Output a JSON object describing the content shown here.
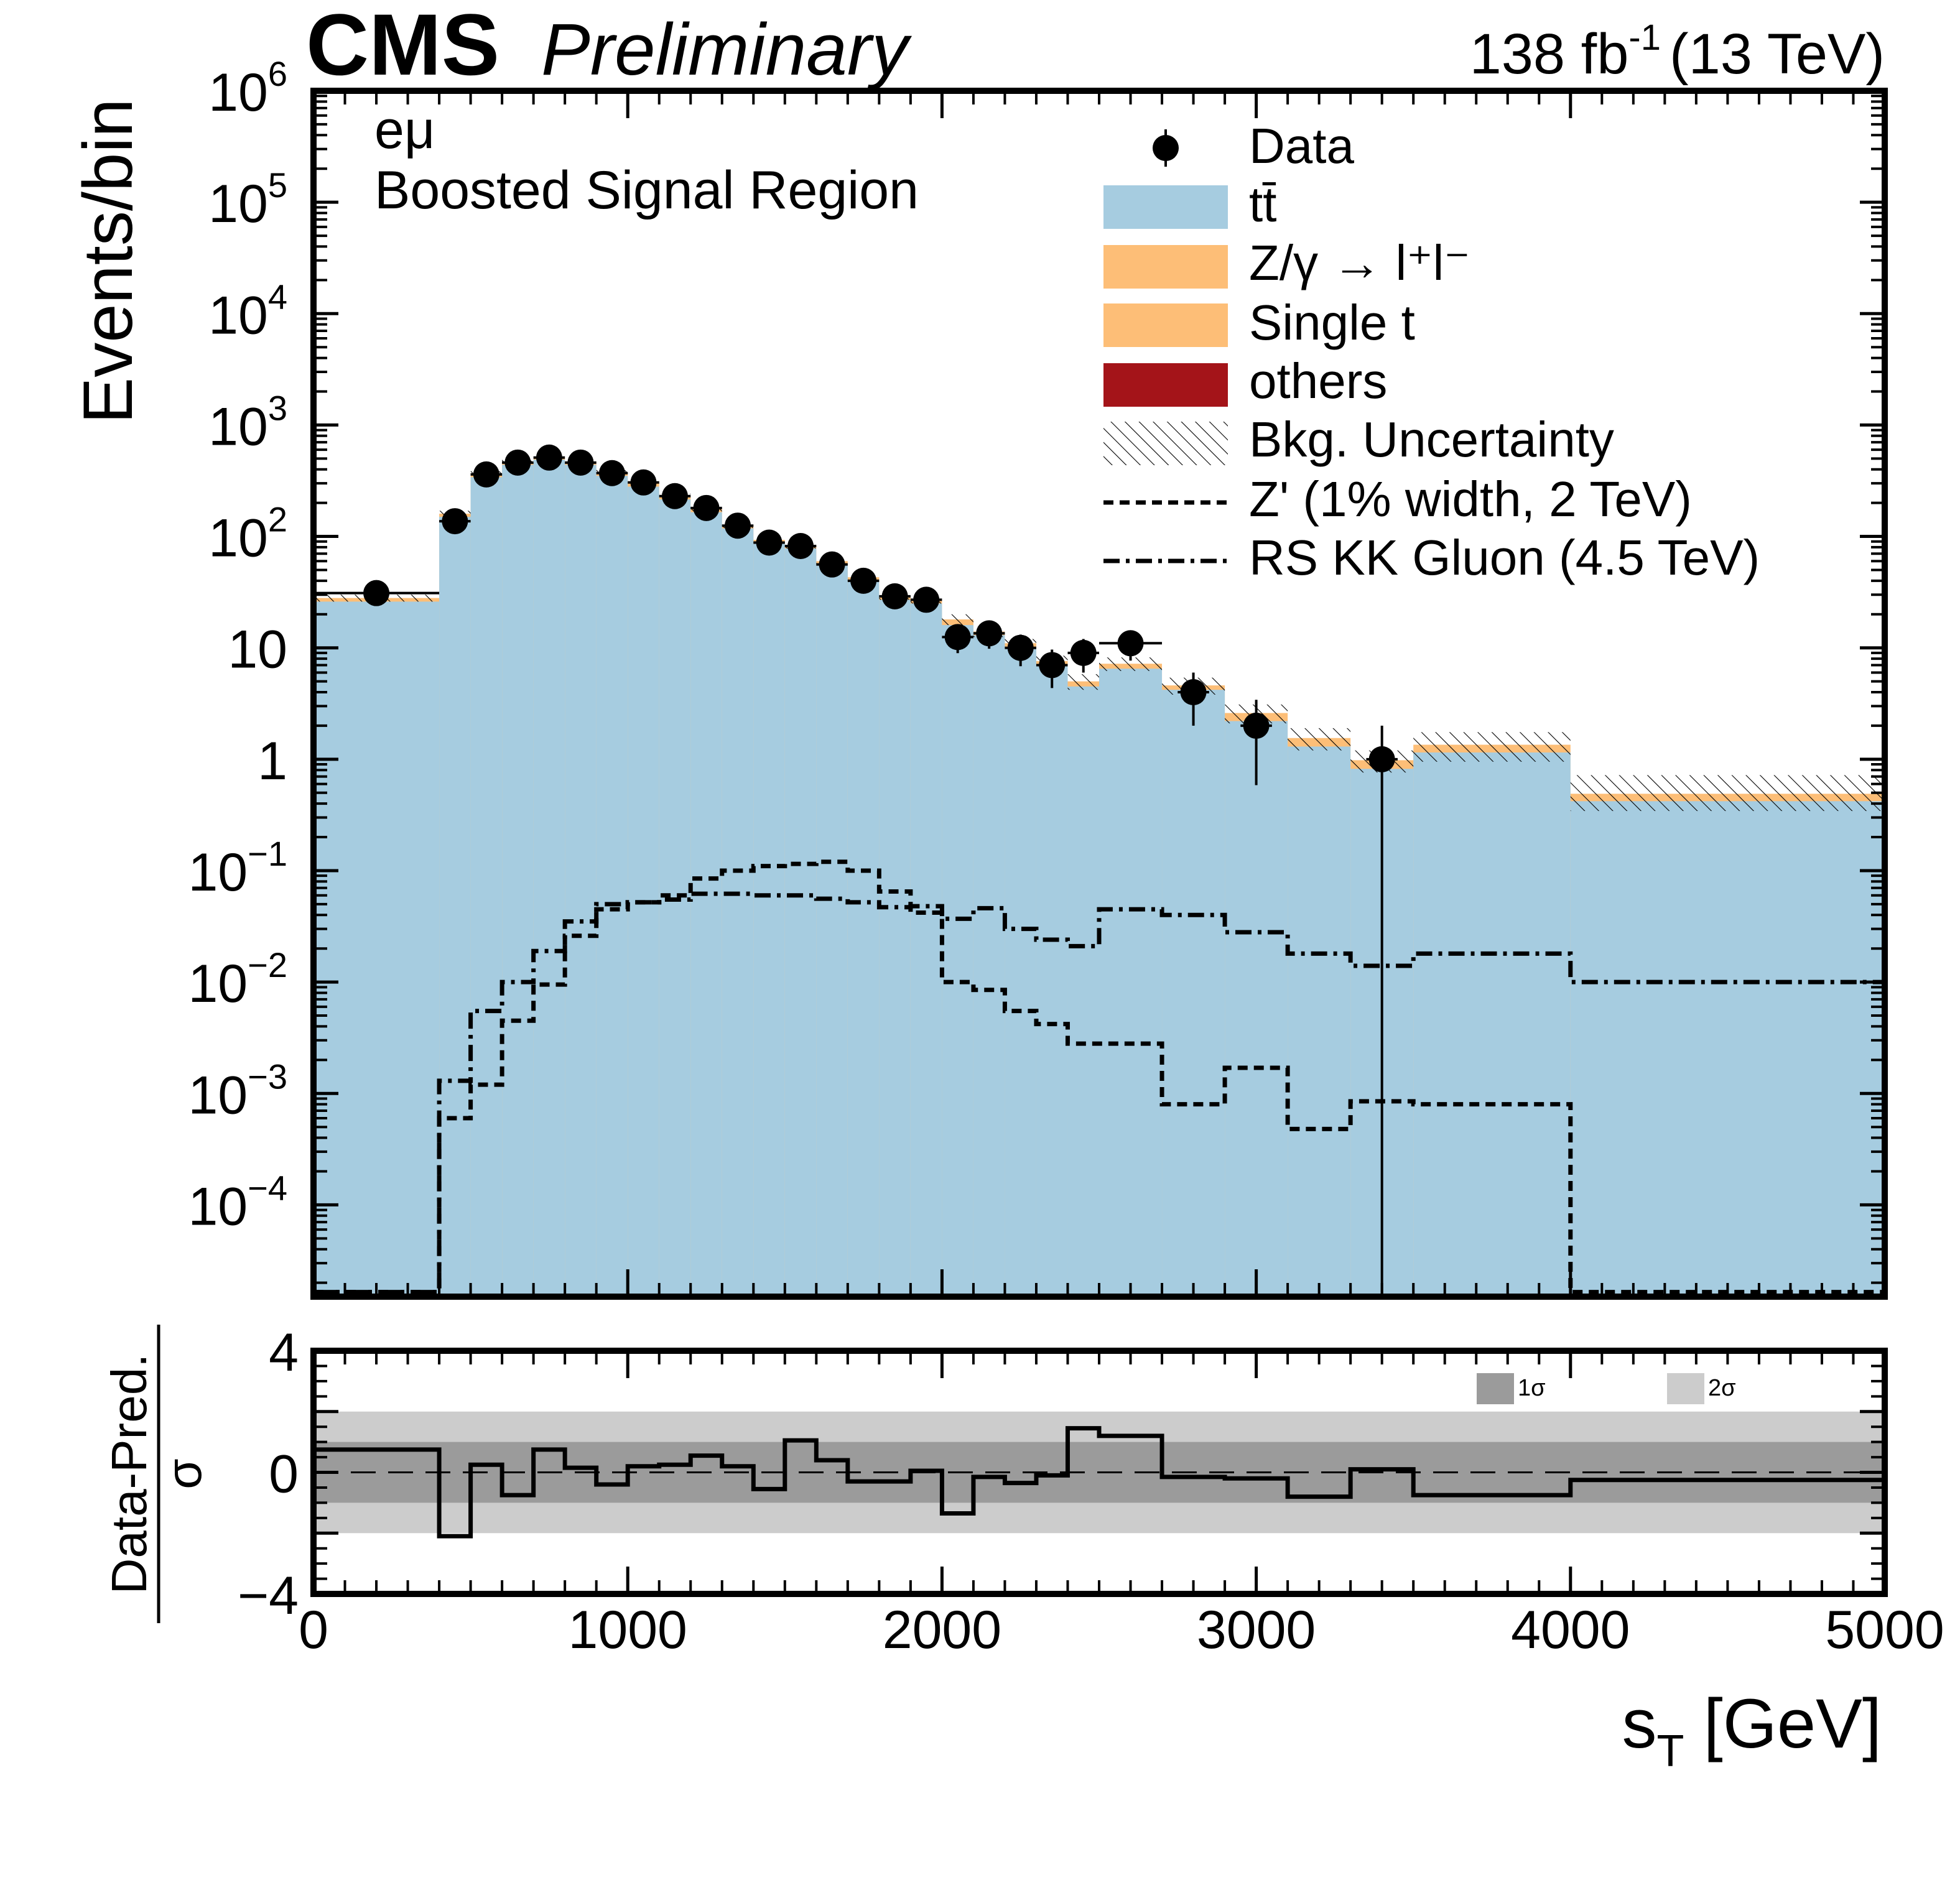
{
  "header": {
    "experiment": "CMS",
    "status": "Preliminary",
    "lumi_value": "138 fb",
    "lumi_exp": "-1",
    "energy": "(13 TeV)"
  },
  "labels": {
    "channel": "eμ",
    "region": "Boosted Signal Region"
  },
  "legend": [
    {
      "key": "data",
      "label": "Data"
    },
    {
      "key": "ttbar",
      "label": "tt̄"
    },
    {
      "key": "dy",
      "label": "Z/γ → l⁺l⁻"
    },
    {
      "key": "single_t",
      "label": "Single t"
    },
    {
      "key": "others",
      "label": "others"
    },
    {
      "key": "unc",
      "label": "Bkg. Uncertainty"
    },
    {
      "key": "zprime",
      "label": "Z' (1% width, 2 TeV)"
    },
    {
      "key": "rskk",
      "label": "RS KK Gluon (4.5 TeV)"
    }
  ],
  "ratio_legend": {
    "one_sigma": "1σ",
    "two_sigma": "2σ"
  },
  "colors": {
    "ttbar": "#a6cce0",
    "dy": "#fdbe77",
    "single_t": "#fdbe77",
    "others": "#a41419",
    "band1": "#9b9b9b",
    "band2": "#cccccc"
  },
  "chart_data": [
    {
      "type": "bar",
      "panel": "main",
      "title": "CMS Preliminary",
      "xlabel": "s_T [GeV]",
      "ylabel": "Events/bin",
      "yscale": "log",
      "ylim": [
        1.5e-05,
        1000000
      ],
      "xlim": [
        0,
        5000
      ],
      "y_ticks": [
        {
          "value": 1000000,
          "base": "10",
          "exp": "6"
        },
        {
          "value": 100000,
          "base": "10",
          "exp": "5"
        },
        {
          "value": 10000,
          "base": "10",
          "exp": "4"
        },
        {
          "value": 1000,
          "base": "10",
          "exp": "3"
        },
        {
          "value": 100,
          "base": "10",
          "exp": "2"
        },
        {
          "value": 10,
          "base": "10",
          "exp": ""
        },
        {
          "value": 1,
          "base": "1",
          "exp": ""
        },
        {
          "value": 0.1,
          "base": "10",
          "exp": "−1"
        },
        {
          "value": 0.01,
          "base": "10",
          "exp": "−2"
        },
        {
          "value": 0.001,
          "base": "10",
          "exp": "−3"
        },
        {
          "value": 0.0001,
          "base": "10",
          "exp": "−4"
        }
      ],
      "bin_edges": [
        0,
        400,
        500,
        600,
        700,
        800,
        900,
        1000,
        1100,
        1200,
        1300,
        1400,
        1500,
        1600,
        1700,
        1800,
        1900,
        2000,
        2100,
        2200,
        2300,
        2400,
        2500,
        2700,
        2900,
        3100,
        3300,
        3500,
        4000,
        5000
      ],
      "series": [
        {
          "name": "tt̄",
          "values": [
            26,
            150,
            340,
            440,
            490,
            440,
            350,
            280,
            215,
            165,
            118,
            87,
            78,
            56,
            40,
            27,
            25,
            16,
            13,
            10,
            7,
            4.5,
            6.5,
            4.2,
            2.2,
            1.3,
            0.82,
            1.15,
            0.42
          ]
        },
        {
          "name": "Z/γ → l⁺l⁻ + Single t",
          "values": [
            28,
            160,
            365,
            470,
            520,
            470,
            375,
            300,
            230,
            176,
            126,
            93,
            83,
            60,
            43,
            29,
            27,
            18,
            14,
            11,
            7.6,
            5,
            7.2,
            4.6,
            2.6,
            1.55,
            0.98,
            1.35,
            0.49
          ]
        },
        {
          "name": "Bkg. Uncertainty (upper)",
          "values": [
            30,
            170,
            385,
            495,
            545,
            495,
            395,
            315,
            242,
            185,
            133,
            98,
            88,
            64,
            46,
            31,
            29,
            20,
            15.5,
            12,
            8.5,
            5.8,
            8.2,
            5.4,
            3.1,
            1.9,
            1.2,
            1.75,
            0.72
          ]
        }
      ],
      "data_points": [
        {
          "x": 200,
          "y": 31,
          "xerr": 200
        },
        {
          "x": 450,
          "y": 137
        },
        {
          "x": 550,
          "y": 360
        },
        {
          "x": 650,
          "y": 460
        },
        {
          "x": 750,
          "y": 510
        },
        {
          "x": 850,
          "y": 460
        },
        {
          "x": 950,
          "y": 370
        },
        {
          "x": 1050,
          "y": 305
        },
        {
          "x": 1150,
          "y": 230
        },
        {
          "x": 1250,
          "y": 180
        },
        {
          "x": 1350,
          "y": 125
        },
        {
          "x": 1450,
          "y": 88
        },
        {
          "x": 1550,
          "y": 82
        },
        {
          "x": 1650,
          "y": 56
        },
        {
          "x": 1750,
          "y": 40
        },
        {
          "x": 1850,
          "y": 29
        },
        {
          "x": 1950,
          "y": 27
        },
        {
          "x": 2050,
          "y": 12.5
        },
        {
          "x": 2150,
          "y": 13.5
        },
        {
          "x": 2250,
          "y": 10
        },
        {
          "x": 2350,
          "y": 7
        },
        {
          "x": 2450,
          "y": 9
        },
        {
          "x": 2600,
          "y": 11,
          "xerr": 100
        },
        {
          "x": 2800,
          "y": 4
        },
        {
          "x": 3000,
          "y": 2
        },
        {
          "x": 3400,
          "y": 1
        }
      ],
      "signals": [
        {
          "name": "Z' (1% width, 2 TeV)",
          "values": [
            1.65e-05,
            0.0006,
            0.0012,
            0.0045,
            0.0095,
            0.026,
            0.045,
            0.052,
            0.06,
            0.085,
            0.1,
            0.11,
            0.115,
            0.12,
            0.1,
            0.065,
            0.042,
            0.01,
            0.0085,
            0.0055,
            0.0042,
            0.0028,
            0.0028,
            0.0008,
            0.0017,
            0.00048,
            0.00085,
            0.0008,
            1.65e-05
          ]
        },
        {
          "name": "RS KK Gluon (4.5 TeV)",
          "values": [
            1.65e-05,
            0.0013,
            0.0055,
            0.01,
            0.019,
            0.035,
            0.05,
            0.052,
            0.055,
            0.062,
            0.062,
            0.06,
            0.06,
            0.056,
            0.052,
            0.047,
            0.048,
            0.037,
            0.046,
            0.03,
            0.024,
            0.021,
            0.045,
            0.04,
            0.028,
            0.018,
            0.014,
            0.018,
            0.01
          ]
        }
      ]
    },
    {
      "type": "line",
      "panel": "ratio",
      "xlabel": "s_T [GeV]",
      "ylabel": "Data-Pred. / σ",
      "ylabel_num": "Data-Pred.",
      "ylabel_den": "σ",
      "ylim": [
        -4,
        4
      ],
      "y_ticks": [
        {
          "value": 4,
          "label": "4"
        },
        {
          "value": 0,
          "label": "0"
        },
        {
          "value": -4,
          "label": "−4"
        }
      ],
      "x_ticks": [
        {
          "value": 0,
          "label": "0"
        },
        {
          "value": 1000,
          "label": "1000"
        },
        {
          "value": 2000,
          "label": "2000"
        },
        {
          "value": 3000,
          "label": "3000"
        },
        {
          "value": 4000,
          "label": "4000"
        },
        {
          "value": 5000,
          "label": "5000"
        }
      ],
      "bands": [
        {
          "name": "1σ",
          "low": -1,
          "high": 1
        },
        {
          "name": "2σ",
          "low": -2,
          "high": 2
        }
      ],
      "bin_edges": [
        0,
        400,
        500,
        600,
        700,
        800,
        900,
        1000,
        1100,
        1200,
        1300,
        1400,
        1500,
        1600,
        1700,
        1800,
        1900,
        2000,
        2100,
        2200,
        2300,
        2400,
        2500,
        2700,
        2900,
        3100,
        3300,
        3500,
        4000,
        5000
      ],
      "values": [
        0.75,
        -2.1,
        0.25,
        -0.75,
        0.75,
        0.15,
        -0.4,
        0.2,
        0.25,
        0.55,
        0.2,
        -0.55,
        1.05,
        0.4,
        -0.3,
        -0.3,
        0.05,
        -1.35,
        -0.15,
        -0.35,
        -0.1,
        1.45,
        1.2,
        -0.15,
        -0.2,
        -0.8,
        0.1,
        -0.75,
        -0.25
      ]
    }
  ]
}
